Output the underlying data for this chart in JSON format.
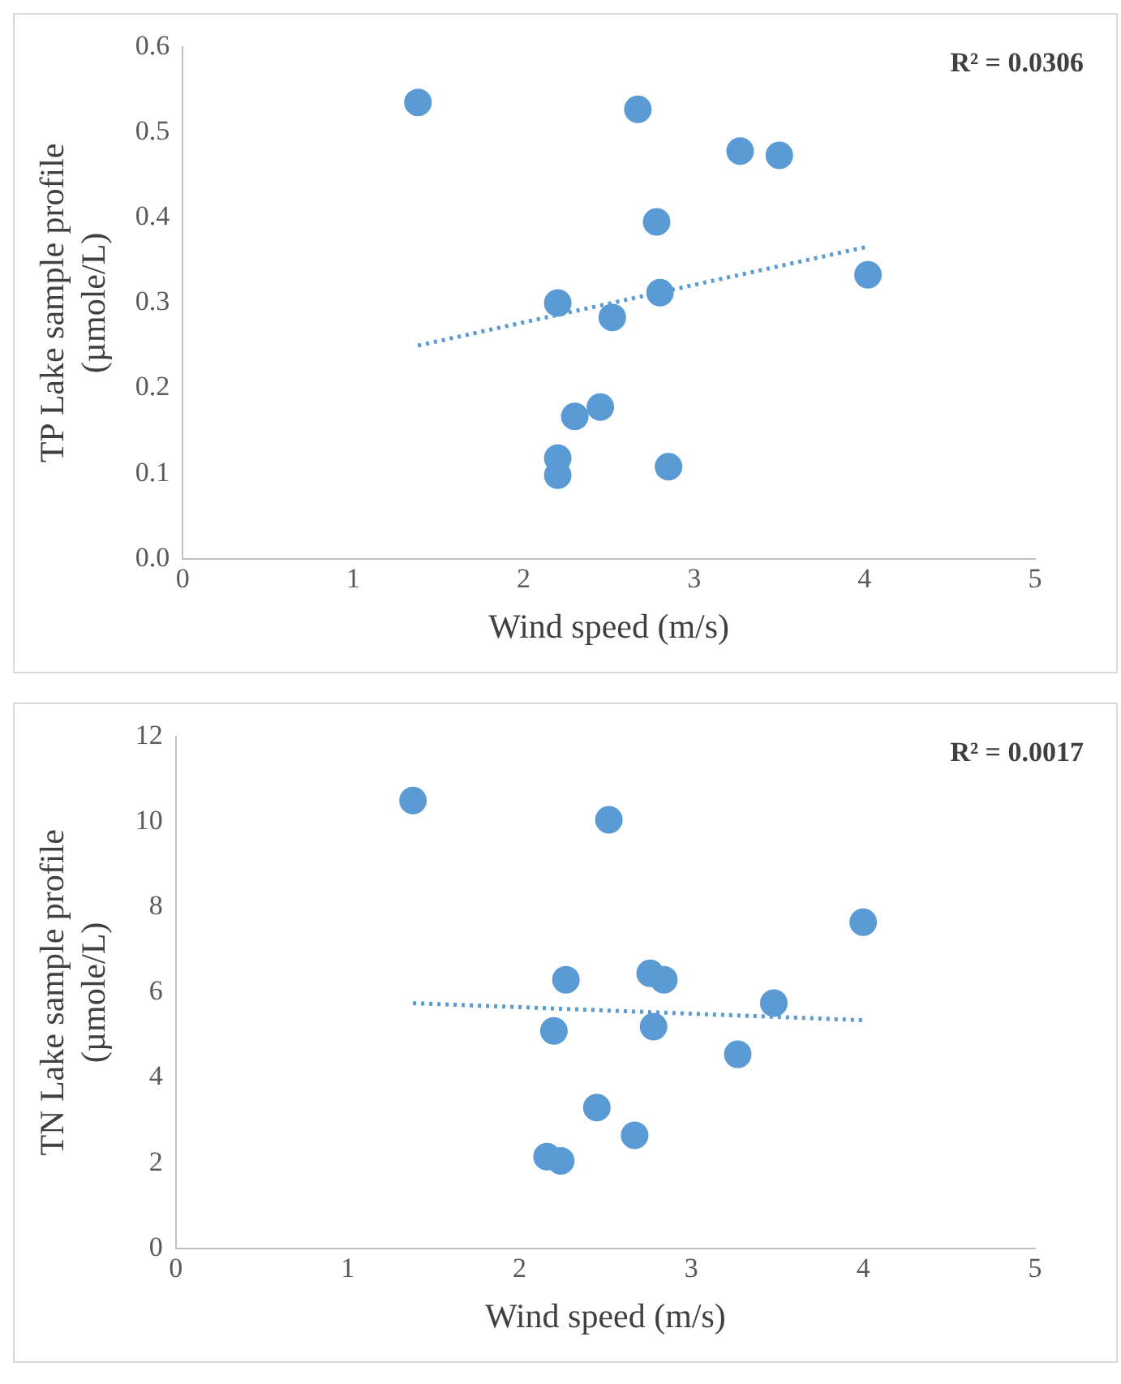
{
  "chart_data": [
    {
      "type": "scatter",
      "xlabel": "Wind speed (m/s)",
      "ylabel": "TP Lake sample profile (µmole/L)",
      "xlim": [
        0,
        5
      ],
      "xticks": [
        0,
        1,
        2,
        3,
        4,
        5
      ],
      "ylim": [
        0,
        0.6
      ],
      "yticks": [
        {
          "value": 0,
          "label": "0.0"
        },
        {
          "value": 0.1,
          "label": "0.1"
        },
        {
          "value": 0.2,
          "label": "0.2"
        },
        {
          "value": 0.3,
          "label": "0.3"
        },
        {
          "value": 0.4,
          "label": "0.4"
        },
        {
          "value": 0.5,
          "label": "0.5"
        },
        {
          "value": 0.6,
          "label": "0.6"
        }
      ],
      "grid": false,
      "legend": false,
      "marker": "circle",
      "annotations": [
        "R² = 0.0306"
      ],
      "series": [
        {
          "type": "scatter",
          "color": "#5b9bd5",
          "x": [
            1.38,
            2.67,
            3.27,
            3.5,
            2.78,
            4.02,
            2.2,
            2.8,
            2.52,
            2.45,
            2.3,
            2.2,
            2.2,
            2.85
          ],
          "values": [
            0.535,
            0.527,
            0.478,
            0.473,
            0.395,
            0.333,
            0.3,
            0.312,
            0.283,
            0.178,
            0.167,
            0.118,
            0.098,
            0.108
          ]
        },
        {
          "type": "line",
          "color": "#5b9bd5",
          "line_style": "dotted",
          "marker": "none",
          "x": [
            1.38,
            4.02
          ],
          "values": [
            0.25,
            0.366
          ]
        }
      ]
    },
    {
      "type": "scatter",
      "xlabel": "Wind speed (m/s)",
      "ylabel": "TN Lake sample profile (µmole/L)",
      "xlim": [
        0,
        5
      ],
      "xticks": [
        0,
        1,
        2,
        3,
        4,
        5
      ],
      "ylim": [
        0,
        12
      ],
      "yticks": [
        0,
        2,
        4,
        6,
        8,
        10,
        12
      ],
      "grid": false,
      "legend": false,
      "marker": "circle",
      "annotations": [
        "R² = 0.0017"
      ],
      "series": [
        {
          "type": "scatter",
          "color": "#5b9bd5",
          "x": [
            1.38,
            2.52,
            4.0,
            2.27,
            2.76,
            2.84,
            3.48,
            2.2,
            2.78,
            3.27,
            2.45,
            2.67,
            2.16,
            2.24
          ],
          "values": [
            10.5,
            10.05,
            7.65,
            6.3,
            6.45,
            6.3,
            5.75,
            5.1,
            5.2,
            4.55,
            3.3,
            2.65,
            2.15,
            2.05
          ]
        },
        {
          "type": "line",
          "color": "#5b9bd5",
          "line_style": "dotted",
          "marker": "none",
          "x": [
            1.38,
            4.0
          ],
          "values": [
            5.75,
            5.35
          ]
        }
      ]
    }
  ]
}
